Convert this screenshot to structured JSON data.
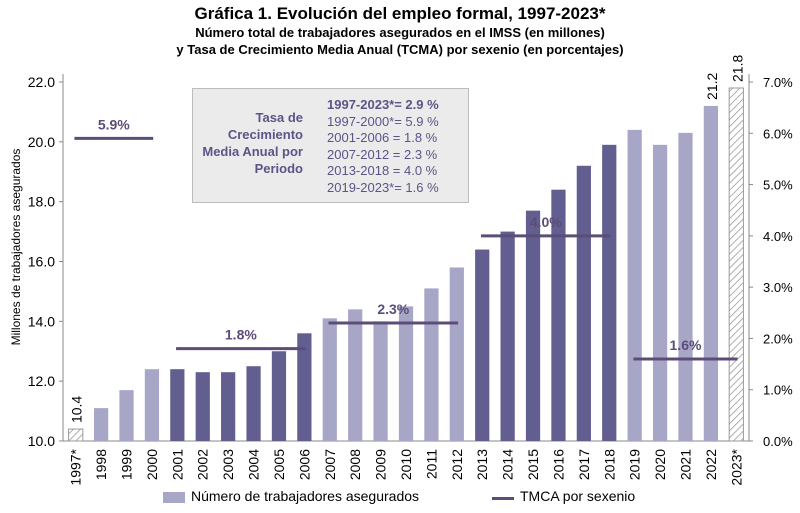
{
  "chart_data": {
    "type": "bar",
    "title": "Gráfica 1. Evolución del empleo formal, 1997-2023*",
    "subtitle_1": "Número total de trabajadores asegurados en el IMSS (en millones)",
    "subtitle_2": "y Tasa de Crecimiento Media Anual (TCMA) por sexenio (en porcentajes)",
    "ylabel": "Millones de trabajadores asegurados",
    "ylim": [
      10.0,
      22.0
    ],
    "y_ticks": [
      "10.0",
      "12.0",
      "14.0",
      "16.0",
      "18.0",
      "20.0",
      "22.0"
    ],
    "y2lim": [
      0.0,
      7.0
    ],
    "y2_ticks": [
      "0.0%",
      "1.0%",
      "2.0%",
      "3.0%",
      "4.0%",
      "5.0%",
      "6.0%",
      "7.0%"
    ],
    "categories": [
      "1997*",
      "1998",
      "1999",
      "2000",
      "2001",
      "2002",
      "2003",
      "2004",
      "2005",
      "2006",
      "2007",
      "2008",
      "2009",
      "2010",
      "2011",
      "2012",
      "2013",
      "2014",
      "2015",
      "2016",
      "2017",
      "2018",
      "2019",
      "2020",
      "2021",
      "2022",
      "2023*"
    ],
    "series": [
      {
        "name": "Número de trabajadores asegurados",
        "values": [
          10.4,
          11.1,
          11.7,
          12.4,
          12.4,
          12.3,
          12.3,
          12.5,
          13.0,
          13.6,
          14.1,
          14.4,
          14.0,
          14.5,
          15.1,
          15.8,
          16.4,
          17.0,
          17.7,
          18.4,
          19.2,
          19.9,
          20.4,
          19.9,
          20.3,
          21.2,
          21.8
        ],
        "styles": [
          "hatch",
          "light",
          "light",
          "light",
          "dark",
          "dark",
          "dark",
          "dark",
          "dark",
          "dark",
          "light",
          "light",
          "light",
          "light",
          "light",
          "light",
          "dark",
          "dark",
          "dark",
          "dark",
          "dark",
          "dark",
          "light",
          "light",
          "light",
          "light",
          "hatch"
        ]
      },
      {
        "name": "TMCA por sexenio",
        "type": "segments",
        "segments": [
          {
            "from": "1997*",
            "to": "2000",
            "value": 5.9,
            "label": "5.9%"
          },
          {
            "from": "2001",
            "to": "2006",
            "value": 1.8,
            "label": "1.8%"
          },
          {
            "from": "2007",
            "to": "2012",
            "value": 2.3,
            "label": "2.3%"
          },
          {
            "from": "2013",
            "to": "2018",
            "value": 4.0,
            "label": "4.0%"
          },
          {
            "from": "2019",
            "to": "2023*",
            "value": 1.6,
            "label": "1.6%"
          }
        ]
      }
    ],
    "data_labels": [
      {
        "category": "1997*",
        "text": "10.4"
      },
      {
        "category": "2022",
        "text": "21.2"
      },
      {
        "category": "2023*",
        "text": "21.8"
      }
    ],
    "colors": {
      "light": "#a8a6c6",
      "dark": "#625e8f",
      "line": "#5c4d78",
      "hatch": "#9a9a9a"
    },
    "legend_position": "bottom"
  },
  "inset": {
    "label": "Tasa de Crecimiento Media Anual por Periodo",
    "rows": [
      "1997-2023*= 2.9 %",
      "1997-2000*= 5.9 %",
      "2001-2006 = 1.8 %",
      "2007-2012  = 2.3 %",
      "2013-2018  = 4.0 %",
      "2019-2023*= 1.6 %"
    ]
  },
  "legend": {
    "bars": "Número de trabajadores asegurados",
    "line": "TMCA por sexenio"
  }
}
